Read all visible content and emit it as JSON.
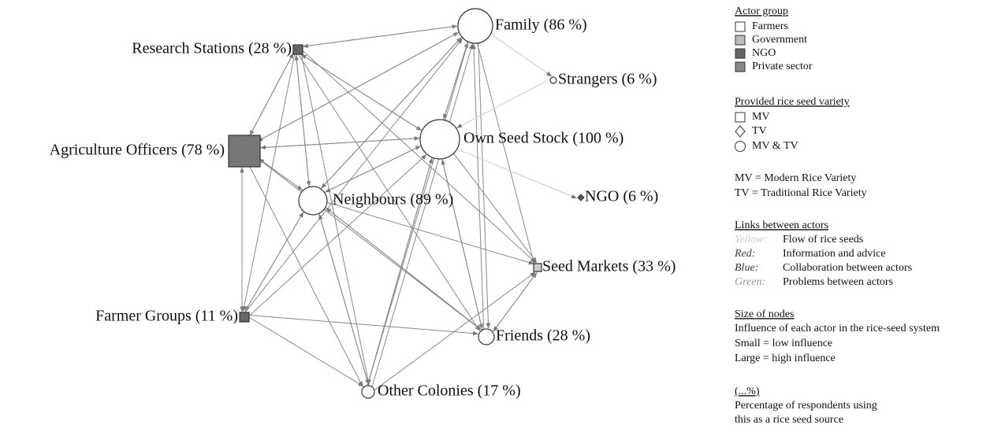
{
  "nodes": [
    {
      "label": "Family (86 %)"
    },
    {
      "label": "Research Stations (28 %)"
    },
    {
      "label": "Strangers (6 %)"
    },
    {
      "label": "Own Seed Stock (100 %)"
    },
    {
      "label": "Agriculture Officers (78 %)"
    },
    {
      "label": "Neighbours (89 %)"
    },
    {
      "label": "NGO (6 %)"
    },
    {
      "label": "Seed Markets (33 %)"
    },
    {
      "label": "Farmer Groups (11 %)"
    },
    {
      "label": "Friends (28 %)"
    },
    {
      "label": "Other Colonies (17 %)"
    }
  ],
  "legend": {
    "actor_group": {
      "title": "Actor group",
      "items": [
        "Farmers",
        "Government",
        "NGO",
        "Private sector"
      ]
    },
    "variety": {
      "title": "Provided rice seed variety",
      "items": [
        "MV",
        "TV",
        "MV & TV"
      ]
    },
    "abbreviations": [
      "MV = Modern Rice Variety",
      "TV = Traditional Rice Variety"
    ],
    "links": {
      "title": "Links between actors",
      "items": [
        {
          "key": "Yellow:",
          "text": "Flow of rice seeds"
        },
        {
          "key": "Red:",
          "text": "Information and advice"
        },
        {
          "key": "Blue:",
          "text": "Collaboration between actors"
        },
        {
          "key": "Green:",
          "text": "Problems between actors"
        }
      ]
    },
    "size": {
      "title": "Size of nodes",
      "lines": [
        "Influence of each actor in the rice-seed system",
        "Small = low influence",
        "Large = high influence"
      ]
    },
    "percent": {
      "title": "(...%)",
      "lines": [
        "Percentage of respondents using",
        "this as a rice seed source"
      ]
    }
  }
}
